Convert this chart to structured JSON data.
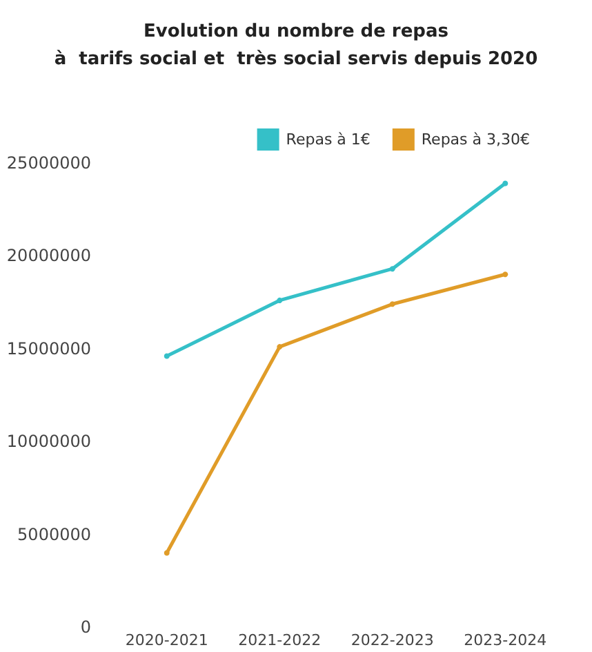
{
  "chart_data": {
    "type": "line",
    "title": "Evolution du nombre de repas\nà  tarifs social et  très social servis depuis 2020",
    "categories": [
      "2020-2021",
      "2021-2022",
      "2022-2023",
      "2023-2024"
    ],
    "series": [
      {
        "name": "Repas à 1€",
        "color": "#35c0c8",
        "values": [
          14600000,
          17600000,
          19300000,
          23900000
        ]
      },
      {
        "name": "Repas à 3,30€",
        "color": "#e09c28",
        "values": [
          4000000,
          15100000,
          17400000,
          19000000
        ]
      }
    ],
    "ylim": [
      0,
      25000000
    ],
    "yticks": [
      0,
      5000000,
      10000000,
      15000000,
      20000000,
      25000000
    ],
    "grid": false,
    "legend": "top right",
    "marker": "circle"
  }
}
